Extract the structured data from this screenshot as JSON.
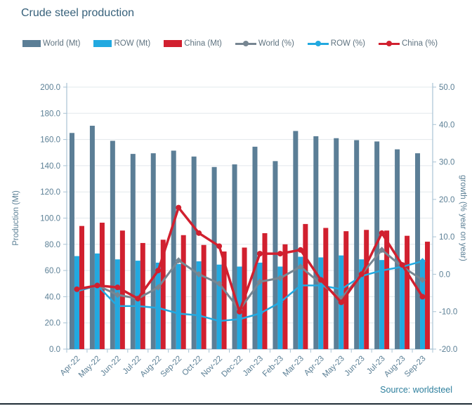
{
  "title": "Crude steel production",
  "source": "Source: worldsteel",
  "colors": {
    "world_bar": "#5B7E96",
    "row_bar": "#22A9E0",
    "china_bar": "#D1202F",
    "world_line": "#778692",
    "row_line": "#22A9E0",
    "china_line": "#D1202F",
    "grid": "#e2e8ec",
    "axis_line": "#a9c3d4",
    "axis_text": "#5b7f95",
    "title_text": "#36607a",
    "source_text": "#2d7f9d",
    "legend_text": "#5f7380"
  },
  "legend": [
    {
      "label": "World (Mt)",
      "type": "bar",
      "color": "#5B7E96"
    },
    {
      "label": "ROW (Mt)",
      "type": "bar",
      "color": "#22A9E0"
    },
    {
      "label": "China (Mt)",
      "type": "bar",
      "color": "#D1202F"
    },
    {
      "label": "World (%)",
      "type": "line",
      "color": "#778692"
    },
    {
      "label": "ROW (%)",
      "type": "line",
      "color": "#22A9E0"
    },
    {
      "label": "China (%)",
      "type": "line",
      "color": "#D1202F"
    }
  ],
  "chart_data": {
    "type": "bar",
    "subtype": "combo bar+line, dual axis",
    "categories": [
      "Apr-22",
      "May-22",
      "Jun-22",
      "Jul-22",
      "Aug-22",
      "Sep-22",
      "Oct-22",
      "Nov-22",
      "Dec-22",
      "Jan-23",
      "Feb-23",
      "Mar-23",
      "Apr-23",
      "May-23",
      "Jun-23",
      "Jul-23",
      "Aug-23",
      "Sep-23"
    ],
    "bar_series": [
      {
        "name": "World (Mt)",
        "axis": "left",
        "color": "#5B7E96",
        "values": [
          165,
          170.5,
          159,
          149,
          149.5,
          151.5,
          147,
          139,
          141,
          154.5,
          143.5,
          166.5,
          162.5,
          161,
          159.5,
          158.5,
          152.5,
          149.5
        ]
      },
      {
        "name": "ROW (Mt)",
        "axis": "left",
        "color": "#22A9E0",
        "values": [
          71,
          73,
          68.5,
          67.5,
          66,
          65,
          67,
          64.5,
          63,
          66,
          63,
          70.5,
          70,
          71.5,
          68.5,
          68,
          66,
          68
        ]
      },
      {
        "name": "China (Mt)",
        "axis": "left",
        "color": "#D1202F",
        "values": [
          94,
          96.5,
          90.5,
          81,
          83.5,
          87,
          79.5,
          74.5,
          77.5,
          88.5,
          80,
          95.5,
          92.5,
          90,
          91,
          90.5,
          86.5,
          82
        ]
      }
    ],
    "line_series": [
      {
        "name": "World (%)",
        "axis": "right",
        "color": "#778692",
        "marker": "diamond",
        "values": [
          -4.5,
          -3,
          -5.5,
          -6.5,
          -3.5,
          3.7,
          0,
          -2.5,
          -9.5,
          -2,
          -1,
          2,
          -2.5,
          -6.5,
          0,
          6.5,
          2,
          -1.5
        ]
      },
      {
        "name": "ROW (%)",
        "axis": "right",
        "color": "#22A9E0",
        "marker": "diamond",
        "values": [
          -4.5,
          -3,
          -8.5,
          -8.5,
          -9,
          -10.5,
          -11,
          -12.5,
          -12,
          -10.5,
          -7.5,
          -3,
          -3,
          -4,
          -0.5,
          1,
          2,
          3.5
        ]
      },
      {
        "name": "China (%)",
        "axis": "right",
        "color": "#D1202F",
        "marker": "circle",
        "values": [
          -4,
          -3,
          -3.5,
          -6.5,
          1,
          17.8,
          11,
          7.5,
          -10,
          5.5,
          5.5,
          6.5,
          -1.5,
          -7.5,
          0,
          11,
          2.5,
          -6
        ]
      }
    ],
    "left_axis": {
      "title": "Production (Mt)",
      "min": 0,
      "max": 200,
      "step": 20,
      "label_format": "one-decimal"
    },
    "right_axis": {
      "title": "growth (% year on year)",
      "min": -20,
      "max": 50,
      "step": 10,
      "label_format": "one-decimal"
    },
    "grid": true,
    "legend_position": "top"
  }
}
